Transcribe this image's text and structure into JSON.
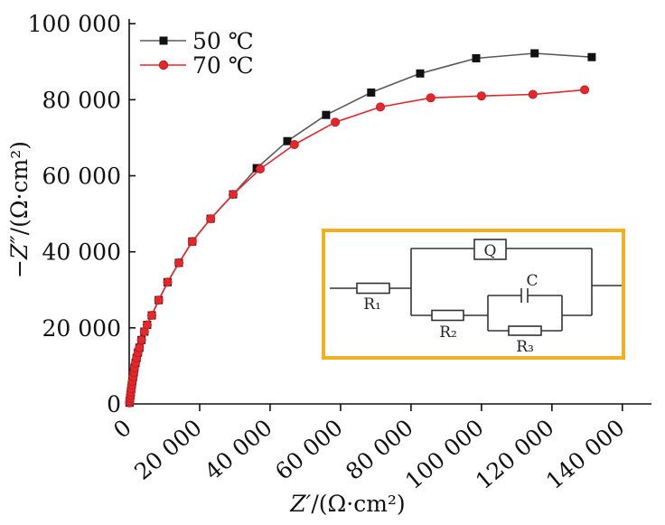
{
  "chart_data": {
    "type": "line",
    "xlabel": "Z′/(Ω·cm²)",
    "ylabel": "−Z″/(Ω·cm²)",
    "xlim": [
      0,
      148000
    ],
    "ylim": [
      0,
      101000
    ],
    "xticks": [
      0,
      20000,
      40000,
      60000,
      80000,
      100000,
      120000,
      140000
    ],
    "xtick_labels": [
      "0",
      "20 000",
      "40 000",
      "60 000",
      "80 000",
      "100 000",
      "120 000",
      "140 000"
    ],
    "yticks": [
      0,
      20000,
      40000,
      60000,
      80000,
      100000
    ],
    "ytick_labels": [
      "0",
      "20 000",
      "40 000",
      "60 000",
      "80 000",
      "100 000"
    ],
    "grid": false,
    "legend": "top-left",
    "series": [
      {
        "name": "50 ℃",
        "marker": "square",
        "color": "#111111",
        "line_color": "#5a5a5a",
        "points": [
          [
            100,
            300
          ],
          [
            150,
            800
          ],
          [
            250,
            1500
          ],
          [
            350,
            2300
          ],
          [
            450,
            3100
          ],
          [
            600,
            4000
          ],
          [
            750,
            5000
          ],
          [
            900,
            6000
          ],
          [
            1100,
            7100
          ],
          [
            1300,
            8300
          ],
          [
            1500,
            9500
          ],
          [
            1800,
            10800
          ],
          [
            2100,
            12100
          ],
          [
            2500,
            13500
          ],
          [
            2900,
            14800
          ],
          [
            3500,
            16800
          ],
          [
            4300,
            19000
          ],
          [
            5100,
            20800
          ],
          [
            6400,
            23300
          ],
          [
            8400,
            27300
          ],
          [
            10900,
            32000
          ],
          [
            14100,
            37100
          ],
          [
            17900,
            42700
          ],
          [
            23100,
            48700
          ],
          [
            29500,
            55100
          ],
          [
            36200,
            62000
          ],
          [
            44900,
            69100
          ],
          [
            55900,
            76000
          ],
          [
            68700,
            81900
          ],
          [
            82600,
            86900
          ],
          [
            98500,
            90900
          ],
          [
            115100,
            92200
          ],
          [
            131300,
            91200
          ]
        ]
      },
      {
        "name": "70 ℃",
        "marker": "circle",
        "color": "#e5262b",
        "edge_color": "#b71c1c",
        "line_color": "#e5262b",
        "points": [
          [
            100,
            300
          ],
          [
            150,
            800
          ],
          [
            250,
            1500
          ],
          [
            350,
            2300
          ],
          [
            450,
            3100
          ],
          [
            600,
            4000
          ],
          [
            750,
            5000
          ],
          [
            900,
            6000
          ],
          [
            1100,
            7100
          ],
          [
            1300,
            8300
          ],
          [
            1500,
            9500
          ],
          [
            1800,
            10800
          ],
          [
            2100,
            12100
          ],
          [
            2500,
            13500
          ],
          [
            2900,
            14800
          ],
          [
            3500,
            16800
          ],
          [
            4300,
            19000
          ],
          [
            5100,
            20800
          ],
          [
            6400,
            23300
          ],
          [
            8400,
            27300
          ],
          [
            10900,
            32000
          ],
          [
            14100,
            37100
          ],
          [
            17900,
            42700
          ],
          [
            23100,
            48700
          ],
          [
            29500,
            55100
          ],
          [
            37200,
            61800
          ],
          [
            46900,
            68200
          ],
          [
            58500,
            74100
          ],
          [
            71300,
            78100
          ],
          [
            85600,
            80500
          ],
          [
            100000,
            81000
          ],
          [
            114600,
            81400
          ],
          [
            129300,
            82600
          ]
        ]
      }
    ]
  },
  "circuit": {
    "border_color": "#f2b01e",
    "labels": {
      "r1": "R₁",
      "q": "Q",
      "r2": "R₂",
      "c": "C",
      "r3": "R₃"
    }
  }
}
